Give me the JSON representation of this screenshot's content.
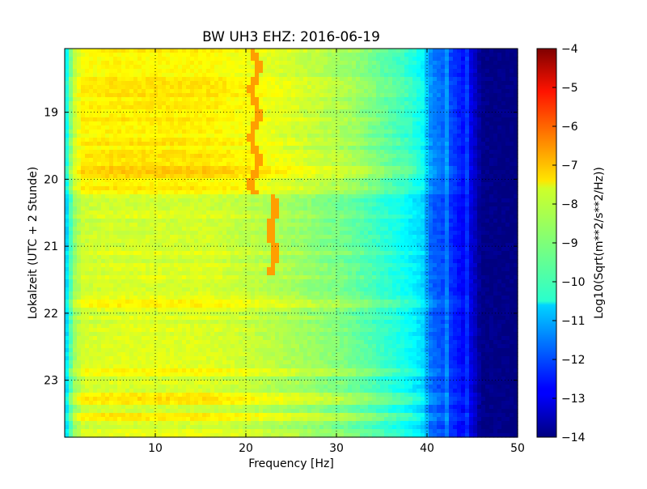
{
  "chart_data": {
    "type": "heatmap",
    "title": "BW UH3 EHZ: 2016-06-19",
    "xlabel": "Frequency [Hz]",
    "ylabel": "Lokalzeit (UTC + 2 Stunde)",
    "xlim": [
      0,
      50
    ],
    "ylim": [
      23.85,
      18.05
    ],
    "y_inverted": true,
    "xticks": [
      10,
      20,
      30,
      40,
      50
    ],
    "yticks": [
      19,
      20,
      21,
      22,
      23
    ],
    "grid": true,
    "colormap": "jet",
    "colorbar": {
      "label": "Log10(Sqrt(m**2/s**2/Hz))",
      "range": [
        -14,
        -4
      ],
      "ticks": [
        -4,
        -5,
        -6,
        -7,
        -8,
        -9,
        -10,
        -11,
        -12,
        -13,
        -14
      ]
    },
    "spectrum_profile": {
      "frequency_hz": [
        0,
        0.5,
        1,
        2,
        5,
        10,
        15,
        18,
        20,
        25,
        30,
        32,
        35,
        38,
        39.5,
        40.5,
        42,
        44,
        45,
        46,
        50
      ],
      "log10_amplitude": [
        -10.6,
        -9.3,
        -8.3,
        -7.7,
        -7.6,
        -7.6,
        -7.6,
        -7.7,
        -7.8,
        -8.1,
        -8.5,
        -8.7,
        -9.2,
        -9.7,
        -10.2,
        -11.4,
        -11.8,
        -12.6,
        -13.0,
        -13.9,
        -14.0
      ]
    },
    "persistent_line": {
      "before_hour": 20.2,
      "frequency_hz_before": 21.0,
      "frequency_hz_after": 23.0,
      "end_hour": 21.45,
      "log10_amplitude": -6.8
    },
    "quiet_after_hour": 20.22,
    "quiet_offset_log10": -0.5,
    "event_rows": [
      {
        "hour": 21.85,
        "offset_log10": 0.45
      },
      {
        "hour": 23.28,
        "offset_log10": 0.55
      },
      {
        "hour": 23.55,
        "offset_log10": 0.25
      },
      {
        "hour": 22.9,
        "offset_log10": 0.25
      },
      {
        "hour": 19.9,
        "offset_log10": 0.2
      }
    ]
  }
}
